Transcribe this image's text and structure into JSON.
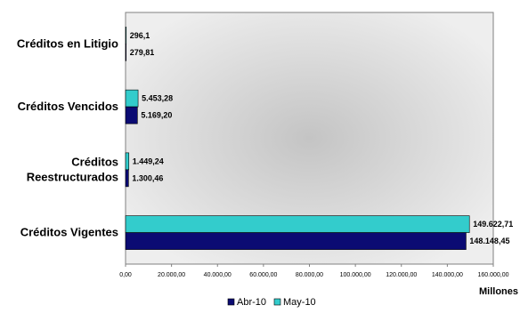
{
  "chart_data": {
    "type": "bar",
    "orientation": "horizontal",
    "categories": [
      [
        "Créditos en Litigio"
      ],
      [
        "Créditos Vencidos"
      ],
      [
        "Créditos",
        "Reestructurados"
      ],
      [
        "Créditos Vigentes"
      ]
    ],
    "series": [
      {
        "name": "Abr-10",
        "color": "#0b0b73",
        "values": [
          279.81,
          5169.2,
          1300.46,
          148148.45
        ],
        "labels": [
          "279,81",
          "5.169,20",
          "1.300,46",
          "148.148,45"
        ]
      },
      {
        "name": "May-10",
        "color": "#33cccc",
        "values": [
          296.1,
          5453.28,
          1449.24,
          149622.71
        ],
        "labels": [
          "296,1",
          "5.453,28",
          "1.449,24",
          "149.622,71"
        ]
      }
    ],
    "xlim": [
      0,
      160000
    ],
    "xticks": [
      "0,00",
      "20.000,00",
      "40.000,00",
      "60.000,00",
      "80.000,00",
      "100.000,00",
      "120.000,00",
      "140.000,00",
      "160.000,00"
    ],
    "xlabel": "Millones",
    "legend_position": "bottom"
  }
}
